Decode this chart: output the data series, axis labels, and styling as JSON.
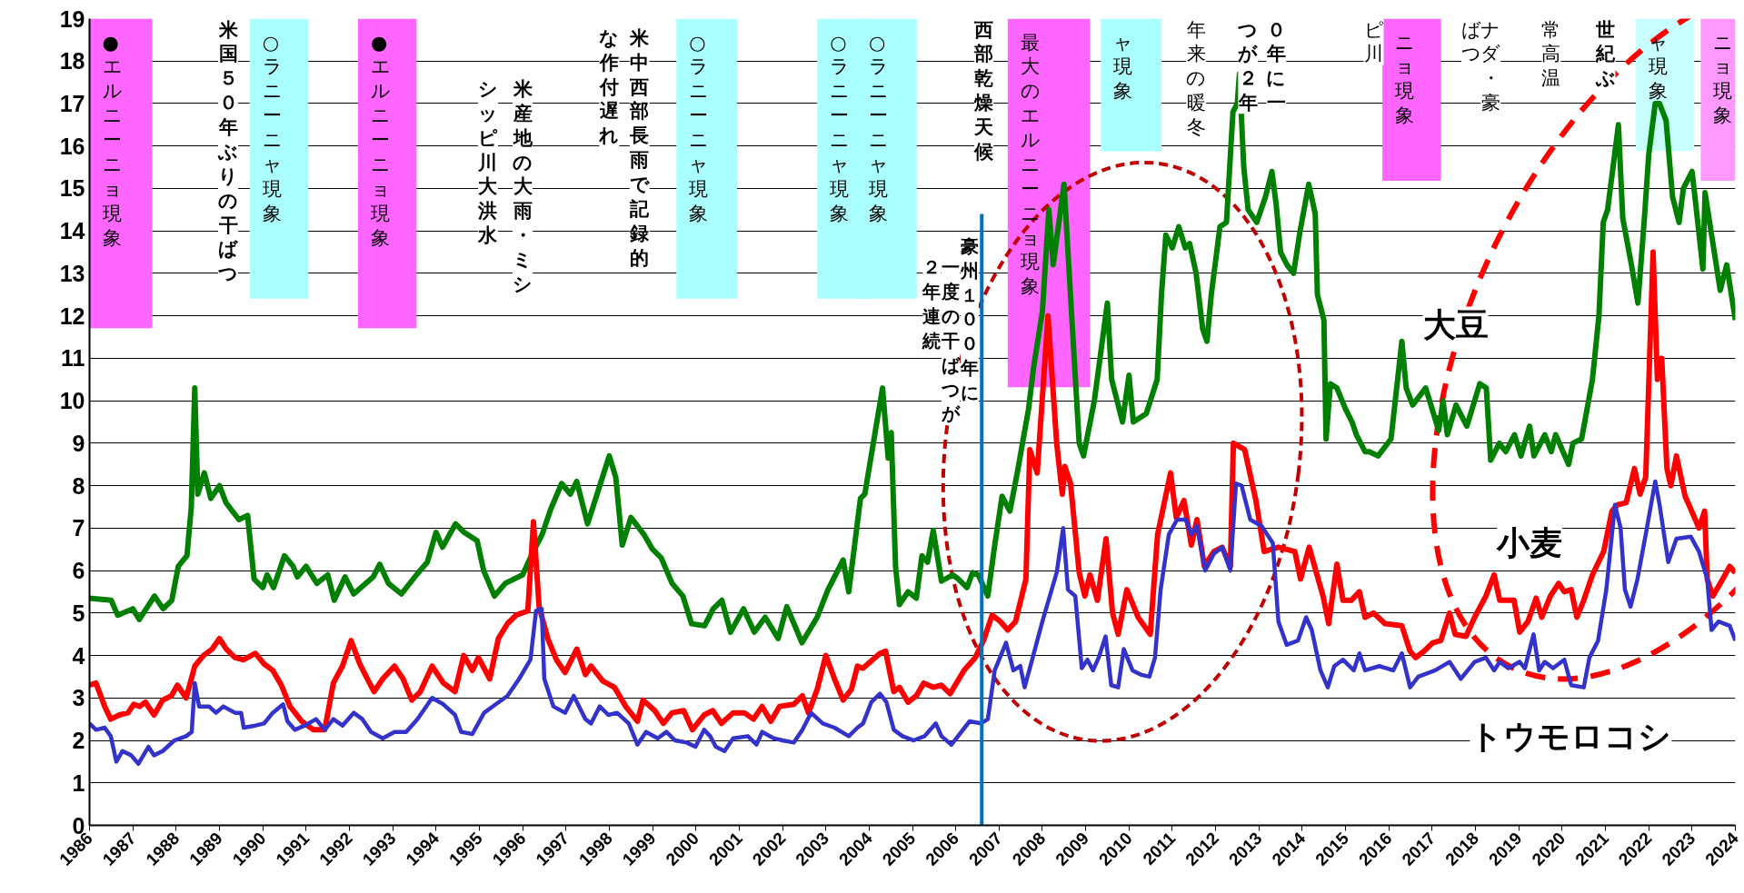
{
  "chart_data": {
    "type": "line",
    "xlim": [
      1986,
      2024
    ],
    "ylim": [
      0,
      19
    ],
    "xticks": [
      1986,
      1987,
      1988,
      1989,
      1990,
      1991,
      1992,
      1993,
      1994,
      1995,
      1996,
      1997,
      1998,
      1999,
      2000,
      2001,
      2002,
      2003,
      2004,
      2005,
      2006,
      2007,
      2008,
      2009,
      2010,
      2011,
      2012,
      2013,
      2014,
      2015,
      2016,
      2017,
      2018,
      2019,
      2020,
      2021,
      2022,
      2023,
      2024
    ],
    "yticks": [
      0,
      1,
      2,
      3,
      4,
      5,
      6,
      7,
      8,
      9,
      10,
      11,
      12,
      13,
      14,
      15,
      16,
      17,
      18,
      19
    ],
    "grid": "y",
    "line_style": "solid",
    "series": [
      {
        "name": "大豆",
        "color": "#008000",
        "x": [
          1986.0,
          1986.5,
          1986.65,
          1987.0,
          1987.15,
          1987.5,
          1987.7,
          1987.9,
          1988.05,
          1988.25,
          1988.35,
          1988.43,
          1988.5,
          1988.65,
          1988.8,
          1989.0,
          1989.15,
          1989.45,
          1989.65,
          1989.8,
          1990.0,
          1990.1,
          1990.25,
          1990.5,
          1990.7,
          1990.8,
          1991.0,
          1991.25,
          1991.5,
          1991.65,
          1991.9,
          1992.1,
          1992.55,
          1992.7,
          1992.9,
          1993.2,
          1993.55,
          1993.8,
          1994.0,
          1994.15,
          1994.45,
          1994.65,
          1994.95,
          1995.1,
          1995.35,
          1995.6,
          1996.0,
          1996.2,
          1996.45,
          1996.65,
          1996.9,
          1997.1,
          1997.25,
          1997.5,
          1997.75,
          1998.0,
          1998.15,
          1998.3,
          1998.5,
          1998.8,
          1999.0,
          1999.2,
          1999.45,
          1999.7,
          1999.9,
          2000.2,
          2000.4,
          2000.6,
          2000.8,
          2001.1,
          2001.35,
          2001.6,
          2001.9,
          2002.1,
          2002.45,
          2002.8,
          2003.05,
          2003.4,
          2003.53,
          2003.8,
          2003.9,
          2004.31,
          2004.44,
          2004.51,
          2004.61,
          2004.7,
          2004.9,
          2005.09,
          2005.22,
          2005.35,
          2005.48,
          2005.67,
          2005.93,
          2006.06,
          2006.26,
          2006.39,
          2006.52,
          2006.74,
          2006.9,
          2007.07,
          2007.25,
          2007.42,
          2007.68,
          2007.8,
          2008.0,
          2008.15,
          2008.25,
          2008.5,
          2008.7,
          2008.85,
          2008.95,
          2009.2,
          2009.5,
          2009.6,
          2009.85,
          2010.0,
          2010.1,
          2010.4,
          2010.65,
          2010.75,
          2010.85,
          2011.0,
          2011.15,
          2011.3,
          2011.4,
          2011.55,
          2011.7,
          2011.8,
          2011.9,
          2012.1,
          2012.25,
          2012.4,
          2012.5,
          2012.55,
          2012.65,
          2012.75,
          2012.95,
          2013.15,
          2013.3,
          2013.4,
          2013.5,
          2013.65,
          2013.8,
          2013.95,
          2014.15,
          2014.3,
          2014.35,
          2014.5,
          2014.55,
          2014.65,
          2014.8,
          2015.0,
          2015.15,
          2015.25,
          2015.45,
          2015.55,
          2015.75,
          2016.05,
          2016.3,
          2016.4,
          2016.55,
          2016.85,
          2017.15,
          2017.25,
          2017.35,
          2017.55,
          2017.8,
          2018.1,
          2018.25,
          2018.35,
          2018.55,
          2018.7,
          2018.9,
          2019.05,
          2019.25,
          2019.35,
          2019.6,
          2019.75,
          2019.85,
          2020.15,
          2020.25,
          2020.45,
          2020.7,
          2020.85,
          2020.95,
          2021.05,
          2021.3,
          2021.4,
          2021.6,
          2021.75,
          2021.9,
          2022.0,
          2022.15,
          2022.25,
          2022.4,
          2022.55,
          2022.7,
          2022.8,
          2023.0,
          2023.1,
          2023.25,
          2023.3,
          2023.65,
          2023.8,
          2024.0
        ],
        "values": [
          5.35,
          5.3,
          4.95,
          5.1,
          4.85,
          5.4,
          5.1,
          5.3,
          6.1,
          6.35,
          7.5,
          10.3,
          7.8,
          8.3,
          7.7,
          8.0,
          7.6,
          7.2,
          7.3,
          5.8,
          5.6,
          5.9,
          5.6,
          6.35,
          6.1,
          5.85,
          6.1,
          5.7,
          5.9,
          5.3,
          5.85,
          5.45,
          5.85,
          6.15,
          5.7,
          5.45,
          5.9,
          6.2,
          6.9,
          6.55,
          7.1,
          6.9,
          6.7,
          6.0,
          5.4,
          5.7,
          5.9,
          6.35,
          6.85,
          7.45,
          8.05,
          7.8,
          8.1,
          7.1,
          7.9,
          8.7,
          8.2,
          6.6,
          7.25,
          6.85,
          6.5,
          6.3,
          5.7,
          5.4,
          4.75,
          4.7,
          5.1,
          5.3,
          4.55,
          5.1,
          4.55,
          4.9,
          4.4,
          5.15,
          4.3,
          4.9,
          5.55,
          6.25,
          5.5,
          7.7,
          7.8,
          10.3,
          8.65,
          9.25,
          6.1,
          5.2,
          5.5,
          5.35,
          6.35,
          6.2,
          6.95,
          5.75,
          5.9,
          5.8,
          5.6,
          5.95,
          5.9,
          5.4,
          6.6,
          7.75,
          7.4,
          8.3,
          9.8,
          10.8,
          12.1,
          14.5,
          13.2,
          15.1,
          11.6,
          9.0,
          8.7,
          10.0,
          12.3,
          10.5,
          9.5,
          10.6,
          9.5,
          9.7,
          10.5,
          12.5,
          13.9,
          13.6,
          14.1,
          13.6,
          13.7,
          13.0,
          11.7,
          11.4,
          12.5,
          14.1,
          14.2,
          16.8,
          17.0,
          17.7,
          15.5,
          14.5,
          14.2,
          14.8,
          15.4,
          14.6,
          13.5,
          13.2,
          13.0,
          14.0,
          15.1,
          14.4,
          12.5,
          11.9,
          9.1,
          10.4,
          10.3,
          9.8,
          9.5,
          9.2,
          8.8,
          8.8,
          8.7,
          9.1,
          11.4,
          10.3,
          9.9,
          10.3,
          9.3,
          10.0,
          9.2,
          9.9,
          9.4,
          10.4,
          10.3,
          8.6,
          9.0,
          8.8,
          9.2,
          8.7,
          9.4,
          8.7,
          9.2,
          8.8,
          9.2,
          8.5,
          9.0,
          9.1,
          10.5,
          12.0,
          14.2,
          14.5,
          16.5,
          14.3,
          13.2,
          12.3,
          14.3,
          15.8,
          17.0,
          17.0,
          16.6,
          14.8,
          14.2,
          15.0,
          15.4,
          14.5,
          13.1,
          14.9,
          12.6,
          13.2,
          11.9
        ]
      },
      {
        "name": "小麦",
        "color": "#ff0000",
        "x": [
          1986.0,
          1986.15,
          1986.35,
          1986.49,
          1986.69,
          1986.89,
          1987.02,
          1987.16,
          1987.29,
          1987.49,
          1987.69,
          1987.89,
          1988.03,
          1988.23,
          1988.43,
          1988.63,
          1988.83,
          1989.0,
          1989.16,
          1989.36,
          1989.56,
          1989.83,
          1990.03,
          1990.23,
          1990.43,
          1990.63,
          1990.9,
          1991.17,
          1991.43,
          1991.63,
          1991.84,
          1992.04,
          1992.24,
          1992.44,
          1992.57,
          1992.77,
          1993.04,
          1993.24,
          1993.44,
          1993.64,
          1993.91,
          1994.17,
          1994.44,
          1994.64,
          1994.84,
          1994.98,
          1995.24,
          1995.44,
          1995.65,
          1995.85,
          1996.12,
          1996.25,
          1996.38,
          1996.58,
          1996.78,
          1996.98,
          1997.25,
          1997.45,
          1997.58,
          1997.85,
          1998.12,
          1998.38,
          1998.65,
          1998.78,
          1999.05,
          1999.25,
          1999.45,
          1999.72,
          1999.92,
          2000.19,
          2000.39,
          2000.59,
          2000.86,
          2001.12,
          2001.33,
          2001.53,
          2001.73,
          2001.93,
          2002.26,
          2002.46,
          2002.6,
          2002.8,
          2003.0,
          2003.2,
          2003.4,
          2003.59,
          2003.73,
          2003.86,
          2004.25,
          2004.38,
          2004.57,
          2004.7,
          2004.9,
          2005.09,
          2005.26,
          2005.48,
          2005.67,
          2005.87,
          2006.19,
          2006.45,
          2006.64,
          2006.84,
          2007.03,
          2007.2,
          2007.38,
          2007.62,
          2007.71,
          2007.88,
          2008.13,
          2008.33,
          2008.46,
          2008.52,
          2008.65,
          2008.85,
          2008.98,
          2009.1,
          2009.27,
          2009.47,
          2009.62,
          2009.75,
          2009.95,
          2010.21,
          2010.49,
          2010.66,
          2010.96,
          2011.09,
          2011.27,
          2011.44,
          2011.57,
          2011.74,
          2011.96,
          2012.15,
          2012.34,
          2012.41,
          2012.67,
          2012.93,
          2013.12,
          2013.45,
          2013.83,
          2013.96,
          2014.16,
          2014.48,
          2014.61,
          2014.8,
          2014.94,
          2015.13,
          2015.32,
          2015.45,
          2015.65,
          2015.91,
          2016.3,
          2016.49,
          2016.62,
          2016.81,
          2017.01,
          2017.2,
          2017.4,
          2017.53,
          2017.78,
          2017.98,
          2018.24,
          2018.43,
          2018.56,
          2018.89,
          2019.02,
          2019.21,
          2019.4,
          2019.53,
          2019.73,
          2019.92,
          2020.05,
          2020.21,
          2020.34,
          2020.5,
          2020.7,
          2020.96,
          2021.15,
          2021.28,
          2021.48,
          2021.67,
          2021.8,
          2021.93,
          2022.1,
          2022.2,
          2022.3,
          2022.42,
          2022.51,
          2022.64,
          2022.84,
          2022.97,
          2023.16,
          2023.29,
          2023.35,
          2023.48,
          2023.68,
          2023.87,
          2024.0
        ],
        "values": [
          3.3,
          3.35,
          2.8,
          2.5,
          2.6,
          2.65,
          2.85,
          2.8,
          2.9,
          2.6,
          2.95,
          3.05,
          3.3,
          3.0,
          3.75,
          4.0,
          4.15,
          4.4,
          4.15,
          3.95,
          3.9,
          4.05,
          3.8,
          3.65,
          3.3,
          2.8,
          2.45,
          2.25,
          2.25,
          3.35,
          3.75,
          4.35,
          3.8,
          3.4,
          3.15,
          3.45,
          3.75,
          3.45,
          2.95,
          3.15,
          3.75,
          3.35,
          3.15,
          4.0,
          3.65,
          3.95,
          3.45,
          4.4,
          4.75,
          4.95,
          5.05,
          7.15,
          5.15,
          4.4,
          3.9,
          3.6,
          4.15,
          3.55,
          3.75,
          3.4,
          3.25,
          2.8,
          2.45,
          2.95,
          2.7,
          2.4,
          2.65,
          2.7,
          2.25,
          2.6,
          2.7,
          2.4,
          2.65,
          2.65,
          2.5,
          2.8,
          2.45,
          2.8,
          2.85,
          3.05,
          2.65,
          3.2,
          4.0,
          3.45,
          2.95,
          3.2,
          3.75,
          3.7,
          4.05,
          4.1,
          3.15,
          3.25,
          2.9,
          3.05,
          3.35,
          3.25,
          3.3,
          3.1,
          3.65,
          3.95,
          4.35,
          4.95,
          4.8,
          4.6,
          4.8,
          5.8,
          8.85,
          8.3,
          12.0,
          9.0,
          7.8,
          8.45,
          8.05,
          5.95,
          5.4,
          5.9,
          5.3,
          6.75,
          5.0,
          4.5,
          5.55,
          4.9,
          4.5,
          6.85,
          8.3,
          7.25,
          7.65,
          6.6,
          7.2,
          6.1,
          6.45,
          6.55,
          6.1,
          9.0,
          8.85,
          7.65,
          6.45,
          6.55,
          6.45,
          5.8,
          6.55,
          5.4,
          4.75,
          6.15,
          5.3,
          5.3,
          5.5,
          4.9,
          5.0,
          4.75,
          4.7,
          4.1,
          3.95,
          4.1,
          4.3,
          4.35,
          5.0,
          4.5,
          4.45,
          4.9,
          5.4,
          5.9,
          5.3,
          5.3,
          4.55,
          4.8,
          5.35,
          4.9,
          5.4,
          5.7,
          5.5,
          5.55,
          4.9,
          5.3,
          5.9,
          6.45,
          7.4,
          7.55,
          7.6,
          8.4,
          7.8,
          8.2,
          13.5,
          10.5,
          11.0,
          8.4,
          8.0,
          8.7,
          7.75,
          7.45,
          7.0,
          7.4,
          5.8,
          5.4,
          5.75,
          6.1,
          5.95
        ]
      },
      {
        "name": "トウモロコシ",
        "color": "#3333cc",
        "x": [
          1986.0,
          1986.15,
          1986.35,
          1986.49,
          1986.62,
          1986.76,
          1986.96,
          1987.13,
          1987.36,
          1987.49,
          1987.69,
          1987.96,
          1988.23,
          1988.36,
          1988.43,
          1988.53,
          1988.76,
          1988.92,
          1989.09,
          1989.36,
          1989.5,
          1989.56,
          1989.83,
          1990.03,
          1990.23,
          1990.47,
          1990.57,
          1990.74,
          1990.97,
          1991.23,
          1991.43,
          1991.63,
          1991.84,
          1992.1,
          1992.3,
          1992.5,
          1992.77,
          1993.04,
          1993.31,
          1993.57,
          1993.91,
          1994.17,
          1994.44,
          1994.58,
          1994.84,
          1995.11,
          1995.38,
          1995.65,
          1995.92,
          1996.18,
          1996.31,
          1996.44,
          1996.5,
          1996.71,
          1996.98,
          1997.18,
          1997.45,
          1997.58,
          1997.78,
          1997.98,
          1998.18,
          1998.45,
          1998.65,
          1998.85,
          1999.12,
          1999.32,
          1999.52,
          1999.79,
          1999.99,
          2000.19,
          2000.33,
          2000.46,
          2000.66,
          2000.86,
          2001.2,
          2001.4,
          2001.53,
          2001.8,
          2002.0,
          2002.26,
          2002.46,
          2002.66,
          2002.93,
          2003.2,
          2003.53,
          2003.73,
          2003.86,
          2004.05,
          2004.25,
          2004.4,
          2004.57,
          2004.77,
          2005.03,
          2005.28,
          2005.54,
          2005.67,
          2005.9,
          2006.32,
          2006.58,
          2006.74,
          2006.9,
          2007.16,
          2007.33,
          2007.49,
          2007.59,
          2007.75,
          2008.0,
          2008.33,
          2008.48,
          2008.59,
          2008.76,
          2008.91,
          2009.04,
          2009.17,
          2009.3,
          2009.46,
          2009.59,
          2009.75,
          2009.88,
          2010.08,
          2010.27,
          2010.47,
          2010.6,
          2010.73,
          2010.92,
          2011.11,
          2011.31,
          2011.44,
          2011.57,
          2011.76,
          2011.96,
          2012.15,
          2012.34,
          2012.47,
          2012.6,
          2012.8,
          2013.06,
          2013.32,
          2013.45,
          2013.64,
          2013.9,
          2014.09,
          2014.22,
          2014.42,
          2014.59,
          2014.74,
          2014.94,
          2015.19,
          2015.32,
          2015.45,
          2015.78,
          2016.1,
          2016.3,
          2016.49,
          2016.68,
          2017.07,
          2017.4,
          2017.66,
          2017.98,
          2018.24,
          2018.43,
          2018.56,
          2018.76,
          2019.02,
          2019.14,
          2019.34,
          2019.47,
          2019.6,
          2019.79,
          2020.05,
          2020.21,
          2020.5,
          2020.63,
          2020.83,
          2021.02,
          2021.22,
          2021.35,
          2021.45,
          2021.58,
          2021.74,
          2021.93,
          2022.15,
          2022.25,
          2022.45,
          2022.64,
          2022.97,
          2023.16,
          2023.35,
          2023.45,
          2023.61,
          2023.87,
          2024.0
        ],
        "values": [
          2.4,
          2.25,
          2.3,
          2.1,
          1.5,
          1.75,
          1.65,
          1.45,
          1.85,
          1.65,
          1.75,
          2.0,
          2.1,
          2.2,
          3.35,
          2.8,
          2.8,
          2.65,
          2.8,
          2.65,
          2.65,
          2.3,
          2.35,
          2.4,
          2.65,
          2.85,
          2.45,
          2.25,
          2.35,
          2.5,
          2.25,
          2.5,
          2.35,
          2.65,
          2.5,
          2.2,
          2.05,
          2.2,
          2.2,
          2.5,
          3.0,
          2.85,
          2.6,
          2.2,
          2.15,
          2.65,
          2.85,
          3.05,
          3.45,
          3.9,
          5.05,
          5.1,
          3.45,
          2.8,
          2.65,
          3.05,
          2.5,
          2.4,
          2.8,
          2.6,
          2.65,
          2.4,
          1.9,
          2.2,
          2.05,
          2.2,
          2.0,
          1.95,
          1.85,
          2.25,
          2.1,
          1.85,
          1.75,
          2.05,
          2.1,
          1.9,
          2.2,
          2.05,
          2.0,
          1.95,
          2.25,
          2.65,
          2.4,
          2.3,
          2.1,
          2.3,
          2.4,
          2.9,
          3.1,
          2.9,
          2.25,
          2.1,
          2.0,
          2.1,
          2.4,
          2.1,
          1.9,
          2.45,
          2.4,
          2.5,
          3.65,
          4.3,
          3.65,
          3.75,
          3.25,
          3.85,
          4.8,
          5.95,
          7.0,
          5.55,
          5.4,
          3.7,
          3.9,
          3.65,
          3.95,
          4.45,
          3.3,
          3.25,
          4.15,
          3.65,
          3.55,
          3.5,
          3.95,
          5.55,
          6.85,
          7.2,
          7.2,
          6.85,
          7.05,
          6.0,
          6.4,
          6.55,
          6.0,
          8.05,
          8.0,
          7.2,
          7.05,
          6.65,
          4.8,
          4.25,
          4.35,
          4.9,
          4.6,
          3.65,
          3.25,
          3.75,
          3.9,
          3.65,
          4.05,
          3.65,
          3.75,
          3.65,
          4.05,
          3.25,
          3.5,
          3.65,
          3.85,
          3.45,
          3.85,
          3.95,
          3.65,
          3.85,
          3.7,
          3.85,
          3.7,
          4.5,
          3.65,
          3.85,
          3.7,
          3.9,
          3.3,
          3.25,
          3.95,
          4.35,
          5.55,
          7.55,
          7.0,
          5.55,
          5.15,
          5.8,
          6.85,
          8.1,
          7.55,
          6.2,
          6.75,
          6.8,
          6.45,
          5.8,
          4.6,
          4.8,
          4.7,
          4.35
        ]
      }
    ],
    "bands": [
      {
        "axis": "x",
        "from": 1986.0,
        "to": 1987.45,
        "label": "●エルニーニョ現象",
        "color": "#ff66ff"
      },
      {
        "axis": "x",
        "from": 1989.7,
        "to": 1991.05,
        "label": "○ラニーニャ現象",
        "color": "#aaffff"
      },
      {
        "axis": "x",
        "from": 1992.2,
        "to": 1993.55,
        "label": "●エルニーニョ現象",
        "color": "#ff66ff"
      },
      {
        "axis": "x",
        "from": 1999.55,
        "to": 2000.95,
        "label": "○ラニーニャ現象",
        "color": "#aaffff"
      },
      {
        "axis": "x",
        "from": 2002.8,
        "to": 2004.1,
        "label": "○ラニーニャ現象",
        "color": "#aaffff"
      },
      {
        "axis": "x",
        "from": 2003.7,
        "to": 2005.1,
        "label": "○ラニーニャ現象",
        "color": "#aaffff"
      },
      {
        "axis": "x",
        "from": 2007.2,
        "to": 2009.1,
        "label": "最大のエルニーニョ現象",
        "color": "#ff66ff"
      },
      {
        "axis": "x",
        "from": 2009.35,
        "to": 2010.75,
        "label": "ャ現象",
        "color": "#aaffff"
      },
      {
        "axis": "x",
        "from": 2015.85,
        "to": 2017.2,
        "label": "ニョ現象",
        "color": "#ff66ff"
      },
      {
        "axis": "x",
        "from": 2021.7,
        "to": 2023.05,
        "label": "ャ現象",
        "color": "#c8ffff"
      },
      {
        "axis": "x",
        "from": 2023.2,
        "to": 2024.0,
        "label": "ニョ現象",
        "color": "#ff99ff"
      }
    ],
    "ref_lines": [
      {
        "axis": "x",
        "value": 2006.6,
        "color": "#0070c0"
      }
    ],
    "annotations": [
      "米国５０年ぶりの干ばつ",
      "米産地の大雨・ミシ",
      "シッピ川大洪水",
      "米中西部長雨で記録的",
      "な作付遅れ",
      "西部乾燥天候",
      "豪州１００年に",
      "一度の干ばつが",
      "２年連続",
      "年来の暖冬",
      "０年に一",
      "つが２年",
      "ピ川",
      "ナダ・豪",
      "ばつ",
      "常高温",
      "世紀ぶ"
    ]
  }
}
